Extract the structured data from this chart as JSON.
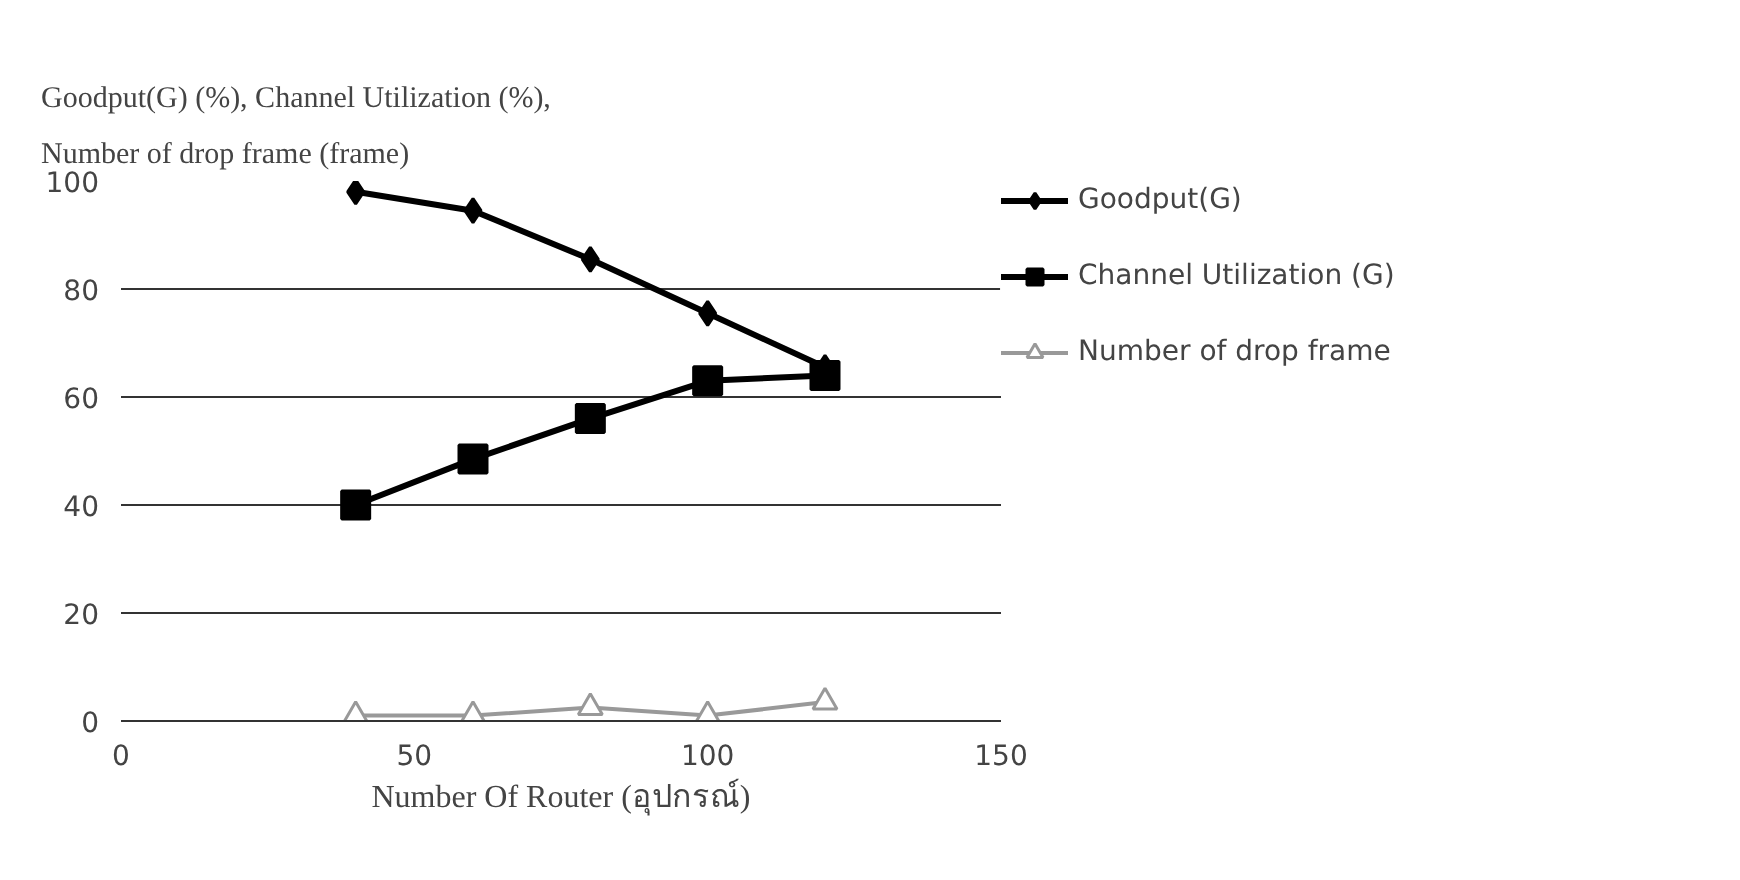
{
  "chart_data": {
    "type": "line",
    "title": "Goodput(G) (%), Channel Utilization (%),",
    "subtitle": "Number of drop frame (frame)",
    "xlabel": "Number Of Router (อุปกรณ์)",
    "x": [
      40,
      60,
      80,
      100,
      120
    ],
    "series": [
      {
        "name": "Goodput(G)",
        "color": "#000000",
        "marker": "diamond",
        "values": [
          98,
          94.5,
          85.5,
          75.5,
          65.5
        ]
      },
      {
        "name": "Channel Utilization (G)",
        "color": "#000000",
        "marker": "square",
        "values": [
          40,
          48.5,
          56,
          63,
          64
        ]
      },
      {
        "name": "Number of drop frame",
        "color": "#999999",
        "marker": "triangle",
        "values": [
          1,
          1,
          2.5,
          1,
          3.5
        ]
      }
    ],
    "xlim": [
      0,
      150
    ],
    "xticks": [
      0,
      50,
      100,
      150
    ],
    "ylim": [
      0,
      100
    ],
    "yticks": [
      0,
      20,
      40,
      60,
      80,
      100
    ],
    "grid": "y",
    "legend": "right"
  }
}
